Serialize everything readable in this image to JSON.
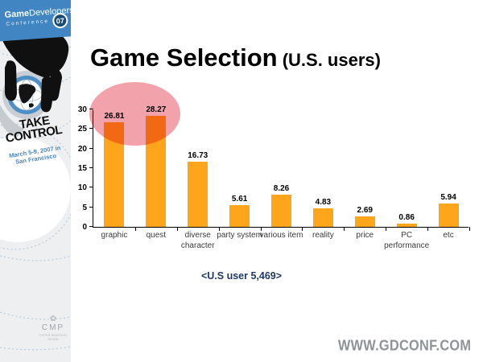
{
  "logo": {
    "brand_bold": "Game",
    "brand_rest": "Developers",
    "conference": "Conference",
    "year_badge": "07"
  },
  "sidebar": {
    "tagline_line1": "TAKE",
    "tagline_line2": "CONTROL",
    "dates_line1": "March 5-9, 2007 in",
    "dates_line2": "San Francisco",
    "cmp_name": "CMP",
    "cmp_sub": "United Business Media"
  },
  "title": {
    "main": "Game Selection",
    "sub": " (U.S. users)"
  },
  "chart_data": {
    "type": "bar",
    "categories": [
      "graphic",
      "quest",
      "diverse character",
      "party system",
      "various item",
      "reality",
      "price",
      "PC performance",
      "etc"
    ],
    "values": [
      26.81,
      28.27,
      16.73,
      5.61,
      8.26,
      4.83,
      2.69,
      0.86,
      5.94
    ],
    "title": "Game Selection (U.S. users)",
    "xlabel": "",
    "ylabel": "",
    "ylim": [
      0,
      30
    ],
    "yticks": [
      0,
      5,
      10,
      15,
      20,
      25,
      30
    ],
    "grid": false,
    "legend": false,
    "bar_color": "#FFA51C",
    "value_labels": true,
    "highlight": {
      "shape": "ellipse",
      "covers": [
        "graphic",
        "quest"
      ],
      "color": "#F2A2AB"
    }
  },
  "caption": "<U.S user 5,469>",
  "footer": {
    "url": "WWW.GDCONF.COM"
  },
  "colors": {
    "accent_orange": "#FFA51C",
    "highlight_pink": "#F2A2AB",
    "header_blue": "#4186C2",
    "caption_navy": "#203864",
    "url_gray": "#8E9399",
    "sidebar_bg": "#EDEFF1"
  }
}
